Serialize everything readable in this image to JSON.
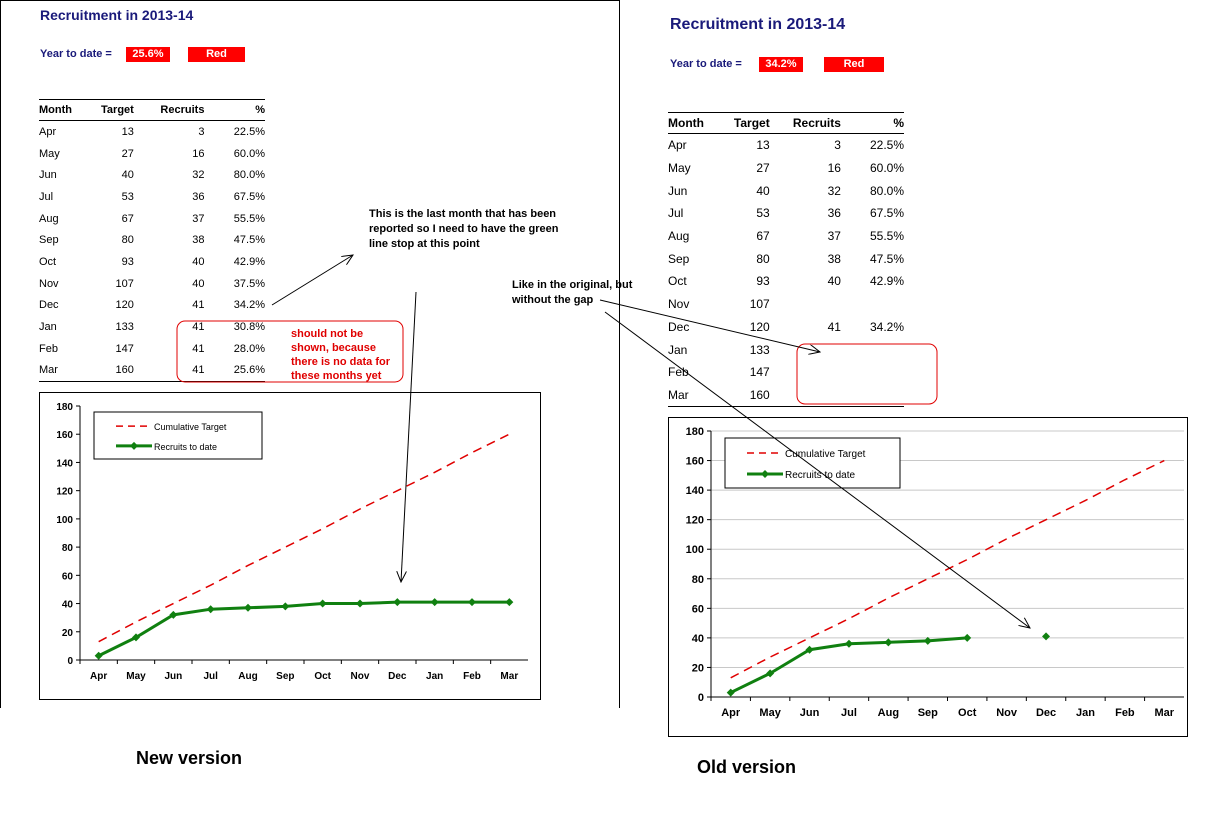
{
  "new_version": {
    "title": "Recruitment in 2013-14",
    "ytd_label": "Year to date =",
    "ytd_value": "25.6%",
    "status": "Red",
    "table": {
      "headers": [
        "Month",
        "Target",
        "Recruits",
        "%"
      ],
      "rows": [
        [
          "Apr",
          "13",
          "3",
          "22.5%"
        ],
        [
          "May",
          "27",
          "16",
          "60.0%"
        ],
        [
          "Jun",
          "40",
          "32",
          "80.0%"
        ],
        [
          "Jul",
          "53",
          "36",
          "67.5%"
        ],
        [
          "Aug",
          "67",
          "37",
          "55.5%"
        ],
        [
          "Sep",
          "80",
          "38",
          "47.5%"
        ],
        [
          "Oct",
          "93",
          "40",
          "42.9%"
        ],
        [
          "Nov",
          "107",
          "40",
          "37.5%"
        ],
        [
          "Dec",
          "120",
          "41",
          "34.2%"
        ],
        [
          "Jan",
          "133",
          "41",
          "30.8%"
        ],
        [
          "Feb",
          "147",
          "41",
          "28.0%"
        ],
        [
          "Mar",
          "160",
          "41",
          "25.6%"
        ]
      ]
    },
    "annotations": {
      "last_month": "This is the last month that has been reported so I need to have the green line stop at this point",
      "no_data": "should not be shown, because there is no data for these months yet"
    },
    "caption": "New version"
  },
  "old_version": {
    "title": "Recruitment in 2013-14",
    "ytd_label": "Year to date =",
    "ytd_value": "34.2%",
    "status": "Red",
    "table": {
      "headers": [
        "Month",
        "Target",
        "Recruits",
        "%"
      ],
      "rows": [
        [
          "Apr",
          "13",
          "3",
          "22.5%"
        ],
        [
          "May",
          "27",
          "16",
          "60.0%"
        ],
        [
          "Jun",
          "40",
          "32",
          "80.0%"
        ],
        [
          "Jul",
          "53",
          "36",
          "67.5%"
        ],
        [
          "Aug",
          "67",
          "37",
          "55.5%"
        ],
        [
          "Sep",
          "80",
          "38",
          "47.5%"
        ],
        [
          "Oct",
          "93",
          "40",
          "42.9%"
        ],
        [
          "Nov",
          "107",
          "",
          ""
        ],
        [
          "Dec",
          "120",
          "41",
          "34.2%"
        ],
        [
          "Jan",
          "133",
          "",
          ""
        ],
        [
          "Feb",
          "147",
          "",
          ""
        ],
        [
          "Mar",
          "160",
          "",
          ""
        ]
      ]
    },
    "annotations": {
      "original": "Like in the original, but without the gap"
    },
    "caption": "Old version"
  },
  "colors": {
    "target": "#e00000",
    "recruits": "#108010",
    "badge": "#ff0000",
    "title": "#1a1a7a"
  },
  "chart_data": [
    {
      "type": "line",
      "categories": [
        "Apr",
        "May",
        "Jun",
        "Jul",
        "Aug",
        "Sep",
        "Oct",
        "Nov",
        "Dec",
        "Jan",
        "Feb",
        "Mar"
      ],
      "series": [
        {
          "name": "Cumulative Target",
          "values": [
            13,
            27,
            40,
            53,
            67,
            80,
            93,
            107,
            120,
            133,
            147,
            160
          ],
          "style": "dashed"
        },
        {
          "name": "Recruits to date",
          "values": [
            3,
            16,
            32,
            36,
            37,
            38,
            40,
            40,
            41,
            41,
            41,
            41
          ],
          "style": "solid-markers"
        }
      ],
      "ylim": [
        0,
        180
      ],
      "yticks": [
        0,
        20,
        40,
        60,
        80,
        100,
        120,
        140,
        160,
        180
      ],
      "grid": false,
      "legend": "top-left"
    },
    {
      "type": "line",
      "categories": [
        "Apr",
        "May",
        "Jun",
        "Jul",
        "Aug",
        "Sep",
        "Oct",
        "Nov",
        "Dec",
        "Jan",
        "Feb",
        "Mar"
      ],
      "series": [
        {
          "name": "Cumulative Target",
          "values": [
            13,
            27,
            40,
            53,
            67,
            80,
            93,
            107,
            120,
            133,
            147,
            160
          ],
          "style": "dashed"
        },
        {
          "name": "Recruits to date",
          "values": [
            3,
            16,
            32,
            36,
            37,
            38,
            40,
            null,
            41,
            null,
            null,
            null
          ],
          "style": "solid-markers"
        }
      ],
      "ylim": [
        0,
        180
      ],
      "yticks": [
        0,
        20,
        40,
        60,
        80,
        100,
        120,
        140,
        160,
        180
      ],
      "grid": true,
      "legend": "top-left"
    }
  ]
}
